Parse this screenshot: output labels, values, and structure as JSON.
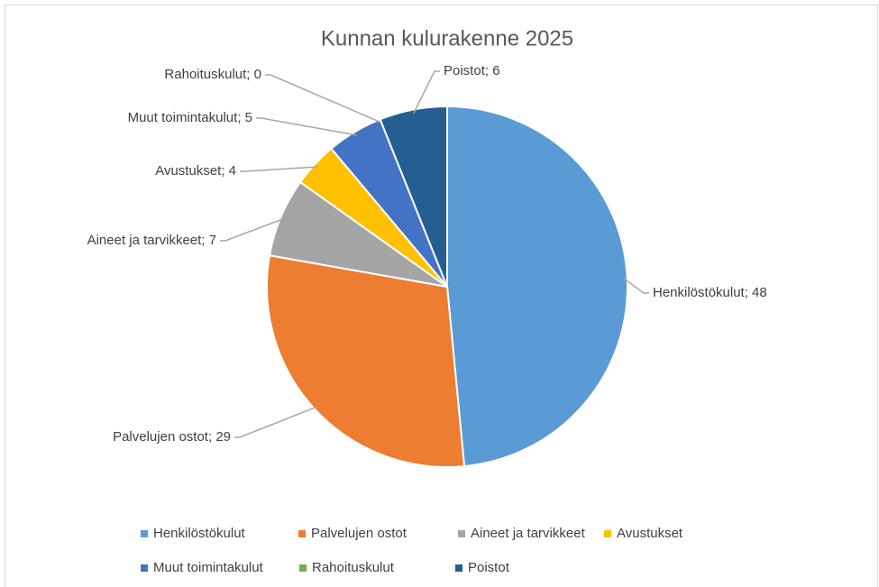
{
  "chart_data": {
    "type": "pie",
    "title": "Kunnan kulurakenne 2025",
    "categories": [
      "Henkilöstökulut",
      "Palvelujen ostot",
      "Aineet ja tarvikkeet",
      "Avustukset",
      "Muut toimintakulut",
      "Rahoituskulut",
      "Poistot"
    ],
    "values": [
      48,
      29,
      7,
      4,
      5,
      0,
      6
    ],
    "value_labels": [
      "Henkilöstökulut; 48",
      "Palvelujen ostot; 29",
      "Aineet ja tarvikkeet; 7",
      "Avustukset; 4",
      "Muut toimintakulut; 5",
      "Rahoituskulut; 0",
      "Poistot; 6"
    ],
    "colors": [
      "#5b9bd5",
      "#ed7d31",
      "#a5a5a5",
      "#ffc000",
      "#4472c4",
      "#70ad47",
      "#255e91"
    ],
    "legend": "bottom"
  }
}
